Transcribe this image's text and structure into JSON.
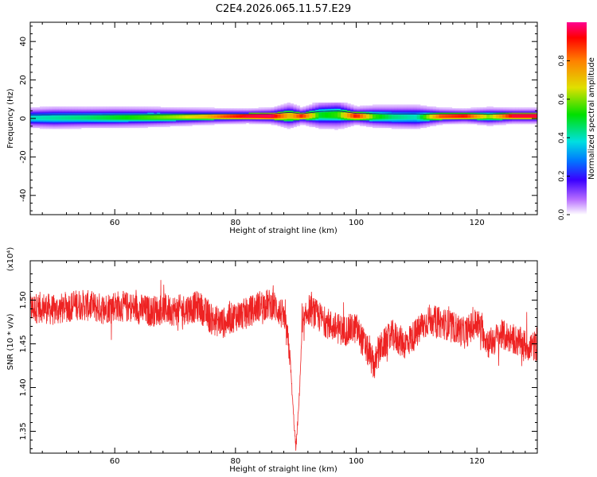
{
  "title": "C2E4.2026.065.11.57.E29",
  "colors": {
    "snr_line": "#ee2222",
    "background": "#ffffff",
    "axis": "#000000"
  },
  "chart_data": [
    {
      "type": "heatmap",
      "xlabel": "Height of straight line (km)",
      "ylabel": "Frequency (Hz)",
      "xlim": [
        46,
        130
      ],
      "ylim": [
        -50,
        50
      ],
      "x_ticks": [
        60,
        80,
        100,
        120
      ],
      "x_tick_labels": [
        "60",
        "80",
        "100",
        "120"
      ],
      "y_ticks": [
        40,
        20,
        0,
        -20,
        -40
      ],
      "y_tick_labels": [
        "40",
        "20",
        "0",
        "-20",
        "-40"
      ],
      "colorbar": {
        "label": "Normalized spectral amplitude",
        "range": [
          0,
          1
        ],
        "ticks": [
          0.0,
          0.2,
          0.4,
          0.6,
          0.8
        ],
        "tick_labels": [
          "0.0",
          "0.2",
          "0.4",
          "0.6",
          "0.8"
        ],
        "colormap": "rainbow"
      },
      "band_profile": [
        {
          "x": 46,
          "center": 0.5,
          "halfwidth": 2.2,
          "peak": 0.4
        },
        {
          "x": 50,
          "center": 0.5,
          "halfwidth": 2.4,
          "peak": 0.42
        },
        {
          "x": 55,
          "center": 0.6,
          "halfwidth": 2.3,
          "peak": 0.45
        },
        {
          "x": 60,
          "center": 0.7,
          "halfwidth": 2.3,
          "peak": 0.5
        },
        {
          "x": 65,
          "center": 0.8,
          "halfwidth": 2.2,
          "peak": 0.55
        },
        {
          "x": 70,
          "center": 1.0,
          "halfwidth": 2.0,
          "peak": 0.62
        },
        {
          "x": 75,
          "center": 1.2,
          "halfwidth": 1.8,
          "peak": 0.72
        },
        {
          "x": 78,
          "center": 1.3,
          "halfwidth": 1.7,
          "peak": 0.85
        },
        {
          "x": 82,
          "center": 1.4,
          "halfwidth": 1.6,
          "peak": 0.95
        },
        {
          "x": 86,
          "center": 1.4,
          "halfwidth": 1.8,
          "peak": 0.97
        },
        {
          "x": 89,
          "center": 1.6,
          "halfwidth": 2.8,
          "peak": 0.7
        },
        {
          "x": 91,
          "center": 1.4,
          "halfwidth": 1.8,
          "peak": 0.9
        },
        {
          "x": 94,
          "center": 2.0,
          "halfwidth": 3.0,
          "peak": 0.5
        },
        {
          "x": 97,
          "center": 2.2,
          "halfwidth": 3.2,
          "peak": 0.55
        },
        {
          "x": 100,
          "center": 1.5,
          "halfwidth": 2.0,
          "peak": 0.92
        },
        {
          "x": 103,
          "center": 1.2,
          "halfwidth": 2.4,
          "peak": 0.55
        },
        {
          "x": 106,
          "center": 1.0,
          "halfwidth": 2.5,
          "peak": 0.45
        },
        {
          "x": 110,
          "center": 0.9,
          "halfwidth": 2.6,
          "peak": 0.4
        },
        {
          "x": 114,
          "center": 1.3,
          "halfwidth": 1.8,
          "peak": 0.85
        },
        {
          "x": 118,
          "center": 1.4,
          "halfwidth": 1.6,
          "peak": 0.92
        },
        {
          "x": 122,
          "center": 1.2,
          "halfwidth": 2.0,
          "peak": 0.6
        },
        {
          "x": 126,
          "center": 1.5,
          "halfwidth": 1.7,
          "peak": 0.95
        },
        {
          "x": 130,
          "center": 1.5,
          "halfwidth": 1.7,
          "peak": 0.95
        }
      ]
    },
    {
      "type": "line",
      "xlabel": "Height of straight line (km)",
      "ylabel": "SNR (10 * v/v)",
      "y_multiplier_label": "(x10⁴)",
      "xlim": [
        46,
        130
      ],
      "ylim": [
        1.325,
        1.545
      ],
      "x_ticks": [
        60,
        80,
        100,
        120
      ],
      "x_tick_labels": [
        "60",
        "80",
        "100",
        "120"
      ],
      "y_ticks": [
        1.35,
        1.4,
        1.45,
        1.5
      ],
      "y_tick_labels": [
        "1.35",
        "1.40",
        "1.45",
        "1.50"
      ],
      "series": [
        {
          "x": [
            46,
            48,
            50,
            52,
            54,
            56,
            58,
            60,
            62,
            64,
            66,
            68,
            70,
            72,
            74,
            76,
            78,
            80,
            82,
            84,
            86,
            87,
            88,
            89,
            89.5,
            90,
            90.5,
            91,
            92,
            94,
            96,
            98,
            100,
            102,
            103,
            104,
            106,
            108,
            110,
            112,
            114,
            116,
            118,
            120,
            122,
            124,
            126,
            128,
            130
          ],
          "y": [
            1.49,
            1.492,
            1.488,
            1.492,
            1.495,
            1.493,
            1.49,
            1.494,
            1.492,
            1.49,
            1.487,
            1.49,
            1.488,
            1.49,
            1.493,
            1.478,
            1.474,
            1.482,
            1.485,
            1.494,
            1.495,
            1.49,
            1.48,
            1.44,
            1.38,
            1.33,
            1.38,
            1.46,
            1.49,
            1.48,
            1.47,
            1.465,
            1.468,
            1.44,
            1.425,
            1.445,
            1.46,
            1.45,
            1.462,
            1.478,
            1.474,
            1.47,
            1.462,
            1.475,
            1.45,
            1.46,
            1.456,
            1.448,
            1.447
          ],
          "noise_amplitude": 0.018
        }
      ]
    }
  ]
}
